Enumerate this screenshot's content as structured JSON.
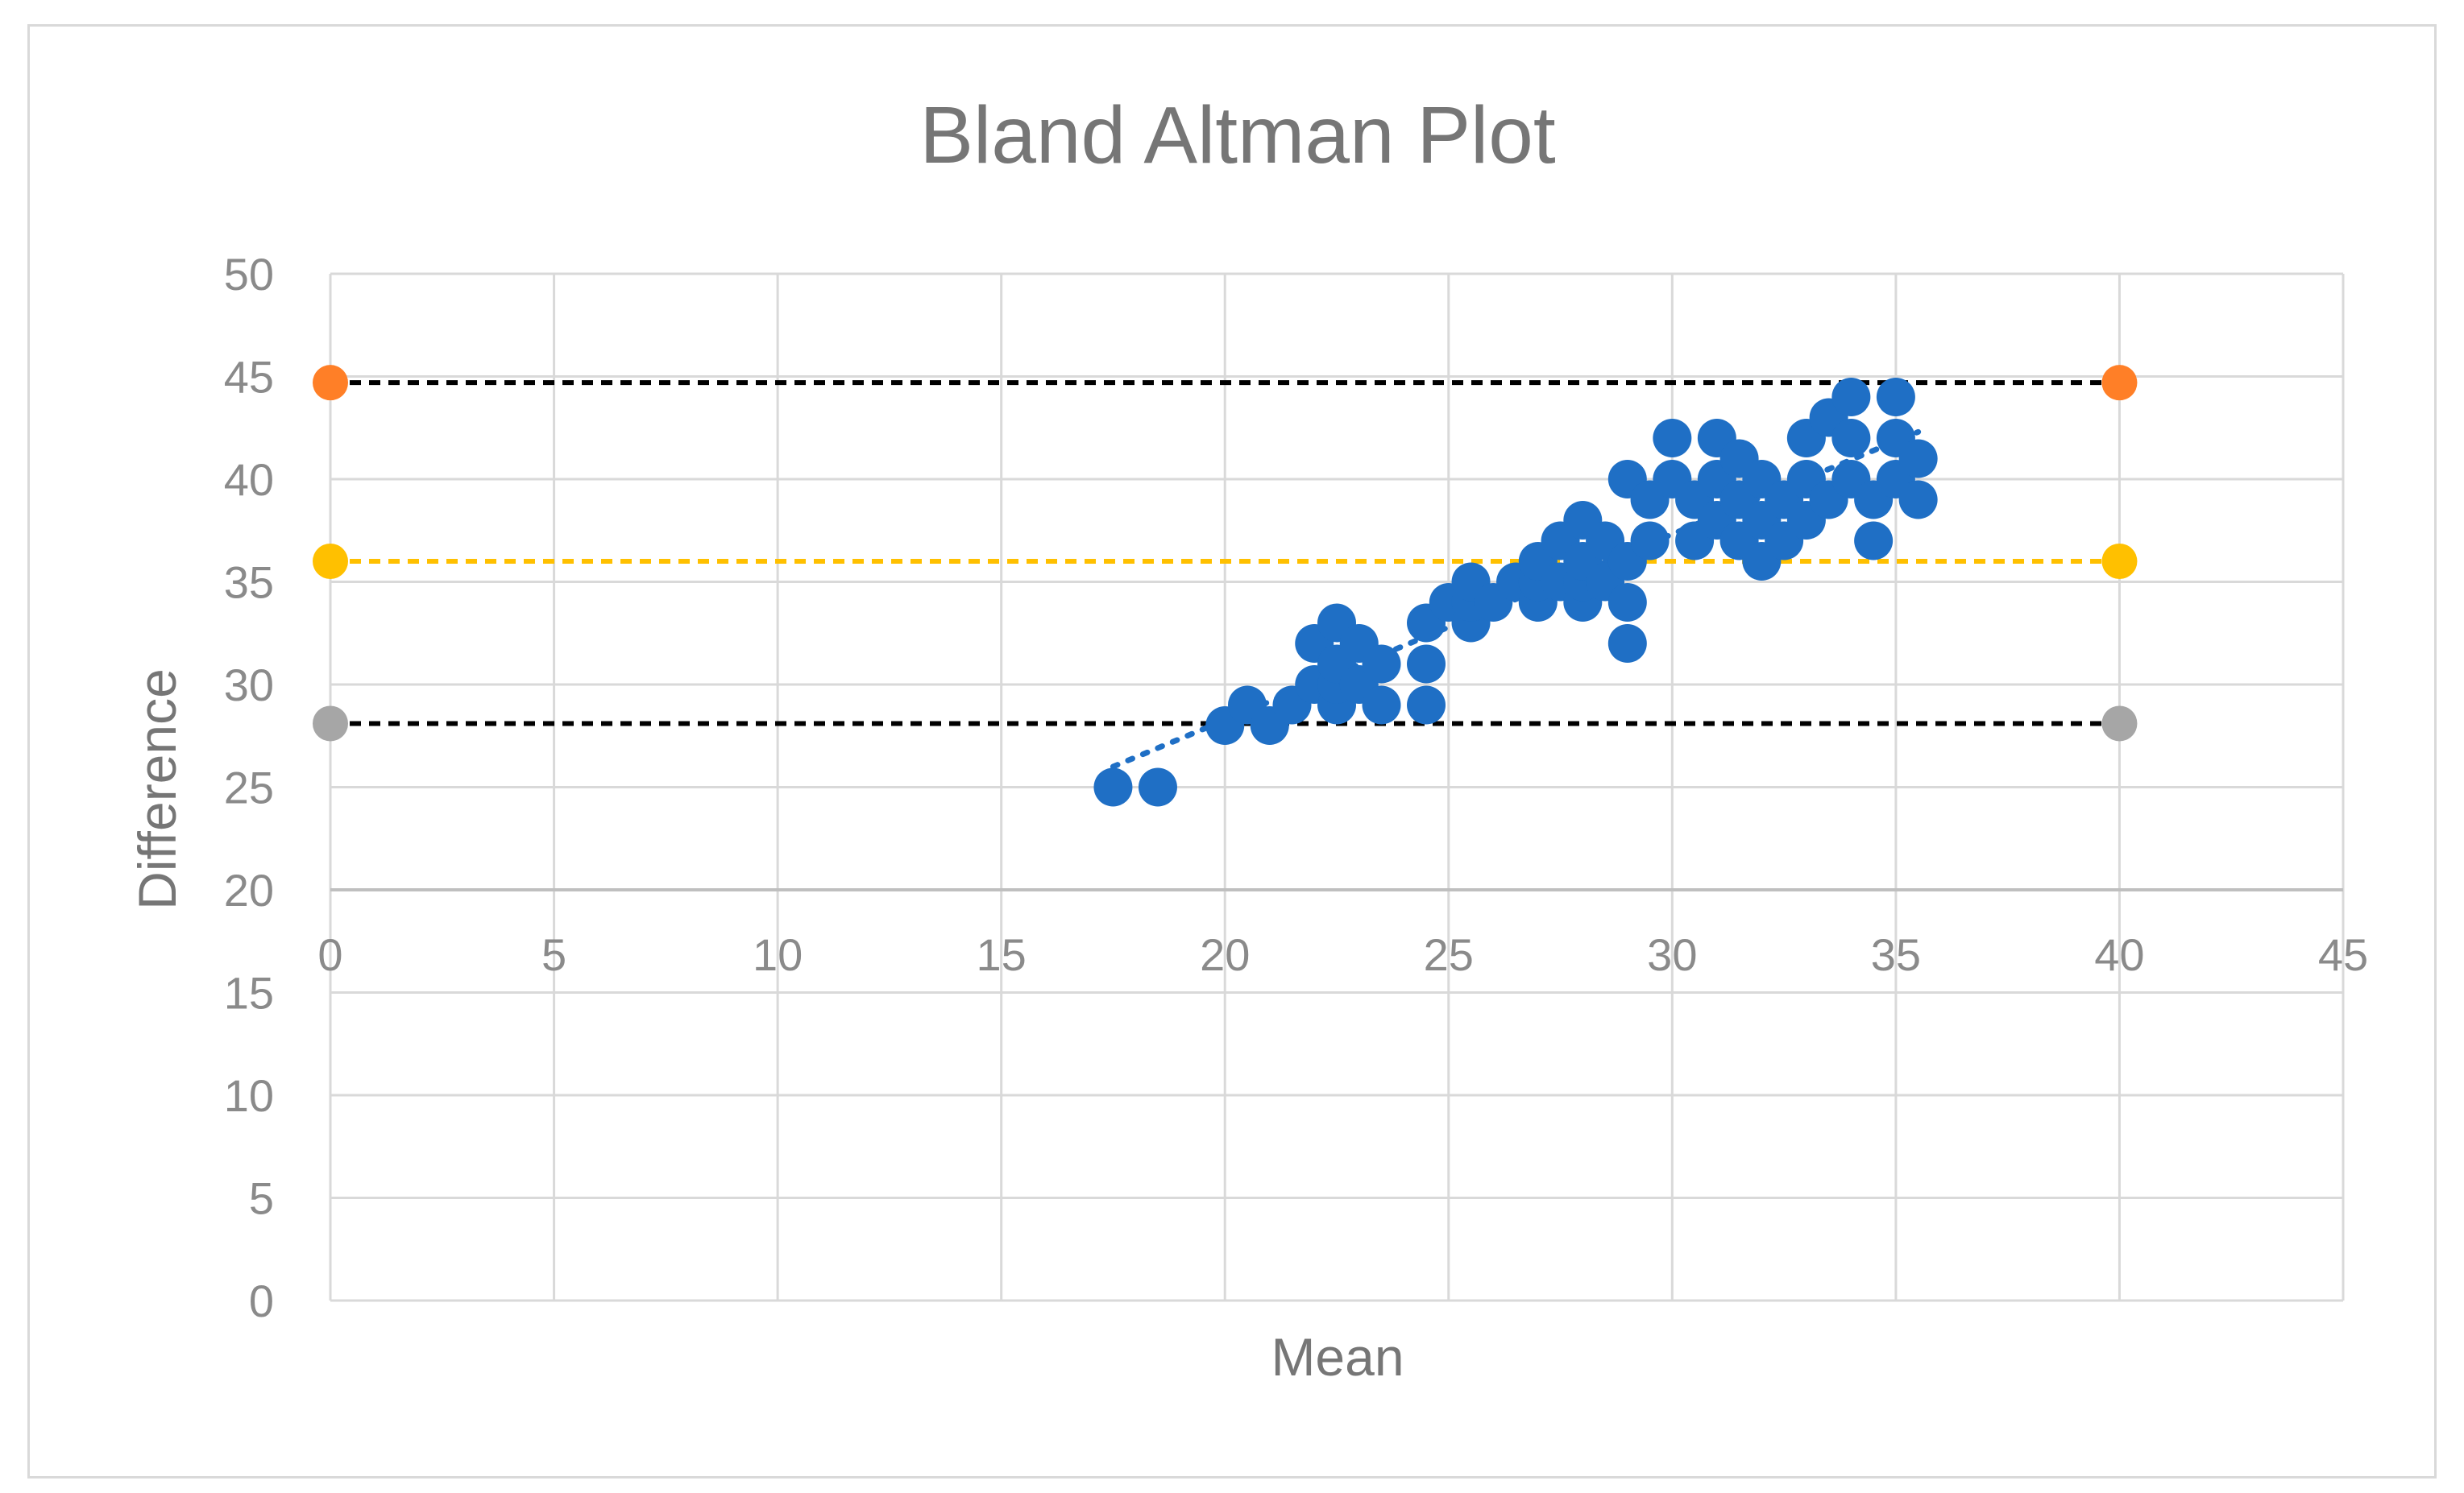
{
  "chart_data": {
    "type": "scatter",
    "title": "Bland Altman Plot",
    "xlabel": "Mean",
    "ylabel": "Difference",
    "xlim": [
      0,
      45
    ],
    "ylim": [
      0,
      50
    ],
    "x_ticks": [
      "0",
      "5",
      "10",
      "15",
      "20",
      "25",
      "30",
      "35",
      "40",
      "45"
    ],
    "y_ticks": [
      "0",
      "5",
      "10",
      "15",
      "20",
      "25",
      "30",
      "35",
      "40",
      "45",
      "50"
    ],
    "x_axis_crosses_y_at": 20,
    "grid": true,
    "legend": "none",
    "colors": {
      "points": "#1f6fc5",
      "trendline": "#1f6fc5",
      "upper_limit": "#ff7f27",
      "mean_line": "#ffc000",
      "lower_limit": "#a6a6a6",
      "limit_line": "#000000",
      "grid": "#d9d9d9",
      "text": "#767676"
    },
    "reference_lines": [
      {
        "y": 44.7,
        "line_color": "#000000",
        "marker_color": "#ff7f27",
        "x": [
          0,
          40
        ]
      },
      {
        "y": 36.0,
        "line_color": "#ffc000",
        "marker_color": "#ffc000",
        "x": [
          0,
          40
        ]
      },
      {
        "y": 28.1,
        "line_color": "#000000",
        "marker_color": "#a6a6a6",
        "x": [
          0,
          40
        ]
      }
    ],
    "trendline": {
      "x": [
        17.5,
        35.5
      ],
      "y": [
        26.0,
        42.3
      ],
      "style": "dotted"
    },
    "points": [
      [
        17.5,
        25
      ],
      [
        18.5,
        25
      ],
      [
        20,
        28
      ],
      [
        20.5,
        29
      ],
      [
        21,
        28
      ],
      [
        21.5,
        29
      ],
      [
        22,
        30
      ],
      [
        22,
        32
      ],
      [
        22.5,
        29
      ],
      [
        22.5,
        30
      ],
      [
        22.5,
        31
      ],
      [
        22.5,
        33
      ],
      [
        23,
        30
      ],
      [
        23,
        32
      ],
      [
        23.5,
        29
      ],
      [
        23.5,
        31
      ],
      [
        24.5,
        29
      ],
      [
        24.5,
        31
      ],
      [
        24.5,
        33
      ],
      [
        25,
        34
      ],
      [
        25.5,
        33
      ],
      [
        25.5,
        34
      ],
      [
        25.5,
        35
      ],
      [
        26,
        34
      ],
      [
        26.5,
        35
      ],
      [
        27,
        34
      ],
      [
        27,
        35
      ],
      [
        27,
        36
      ],
      [
        27.5,
        35
      ],
      [
        27.5,
        37
      ],
      [
        28,
        34
      ],
      [
        28,
        35
      ],
      [
        28,
        36
      ],
      [
        28,
        38
      ],
      [
        28.5,
        35
      ],
      [
        28.5,
        37
      ],
      [
        29,
        32
      ],
      [
        29,
        34
      ],
      [
        29,
        36
      ],
      [
        29,
        40
      ],
      [
        29.5,
        37
      ],
      [
        29.5,
        39
      ],
      [
        30,
        40
      ],
      [
        30,
        42
      ],
      [
        30.5,
        37
      ],
      [
        30.5,
        39
      ],
      [
        31,
        38
      ],
      [
        31,
        40
      ],
      [
        31,
        42
      ],
      [
        31.5,
        37
      ],
      [
        31.5,
        39
      ],
      [
        31.5,
        41
      ],
      [
        32,
        36
      ],
      [
        32,
        38
      ],
      [
        32,
        40
      ],
      [
        32.5,
        37
      ],
      [
        32.5,
        39
      ],
      [
        33,
        38
      ],
      [
        33,
        40
      ],
      [
        33,
        42
      ],
      [
        33.5,
        39
      ],
      [
        33.5,
        43
      ],
      [
        34,
        40
      ],
      [
        34,
        42
      ],
      [
        34,
        44
      ],
      [
        34.5,
        37
      ],
      [
        34.5,
        39
      ],
      [
        35,
        40
      ],
      [
        35,
        42
      ],
      [
        35,
        44
      ],
      [
        35.5,
        39
      ],
      [
        35.5,
        41
      ]
    ]
  }
}
